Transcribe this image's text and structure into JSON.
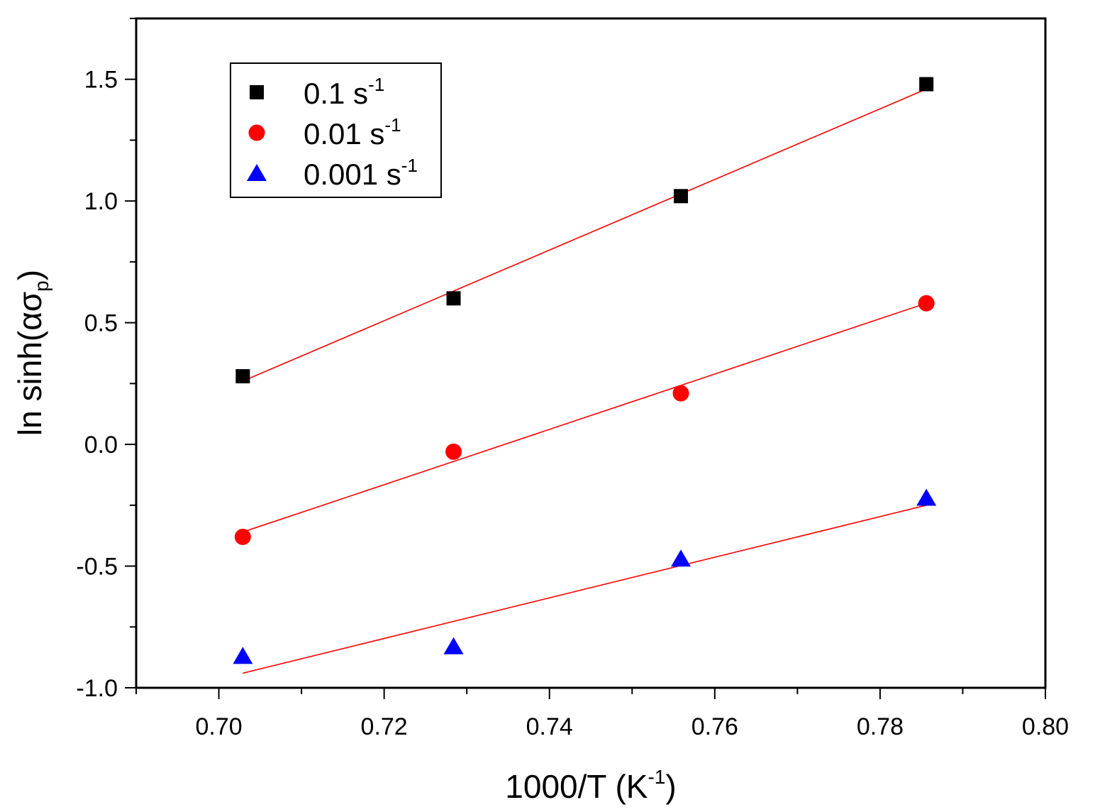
{
  "chart_data": {
    "type": "scatter",
    "title": "",
    "xlabel": "1000/T (K",
    "xlabel_sup": "-1",
    "xlabel_end": ")",
    "ylabel": "ln sinh(ασ",
    "ylabel_sub": "p",
    "ylabel_end": ")",
    "xlim": [
      0.69,
      0.8
    ],
    "ylim": [
      -1.0,
      1.75
    ],
    "x_ticks": [
      0.7,
      0.72,
      0.74,
      0.76,
      0.78,
      0.8
    ],
    "x_tick_labels": [
      "0.70",
      "0.72",
      "0.74",
      "0.76",
      "0.78",
      "0.80"
    ],
    "y_ticks": [
      -1.0,
      -0.5,
      0.0,
      0.5,
      1.0,
      1.5
    ],
    "y_tick_labels": [
      "-1.0",
      "-0.5",
      "0.0",
      "0.5",
      "1.0",
      "1.5"
    ],
    "grid": false,
    "legend_position": "top-left",
    "series": [
      {
        "name": "0.1 s",
        "name_sup": "-1",
        "marker": "square",
        "color": "#000000",
        "x": [
          0.7029,
          0.7284,
          0.7559,
          0.7856
        ],
        "y": [
          0.28,
          0.6,
          1.02,
          1.48
        ],
        "fit": {
          "x": [
            0.7029,
            0.7856
          ],
          "y": [
            0.26,
            1.46
          ],
          "color": "#ff0000"
        }
      },
      {
        "name": "0.01 s",
        "name_sup": "-1",
        "marker": "circle",
        "color": "#ff0000",
        "x": [
          0.7029,
          0.7284,
          0.7559,
          0.7856
        ],
        "y": [
          -0.38,
          -0.03,
          0.21,
          0.58
        ],
        "fit": {
          "x": [
            0.7029,
            0.7856
          ],
          "y": [
            -0.36,
            0.58
          ],
          "color": "#ff0000"
        }
      },
      {
        "name": "0.001 s",
        "name_sup": "-1",
        "marker": "triangle",
        "color": "#0000ff",
        "x": [
          0.7029,
          0.7284,
          0.7559,
          0.7856
        ],
        "y": [
          -0.87,
          -0.83,
          -0.47,
          -0.22
        ],
        "fit": {
          "x": [
            0.7029,
            0.7856
          ],
          "y": [
            -0.94,
            -0.25
          ],
          "color": "#ff0000"
        }
      }
    ]
  }
}
